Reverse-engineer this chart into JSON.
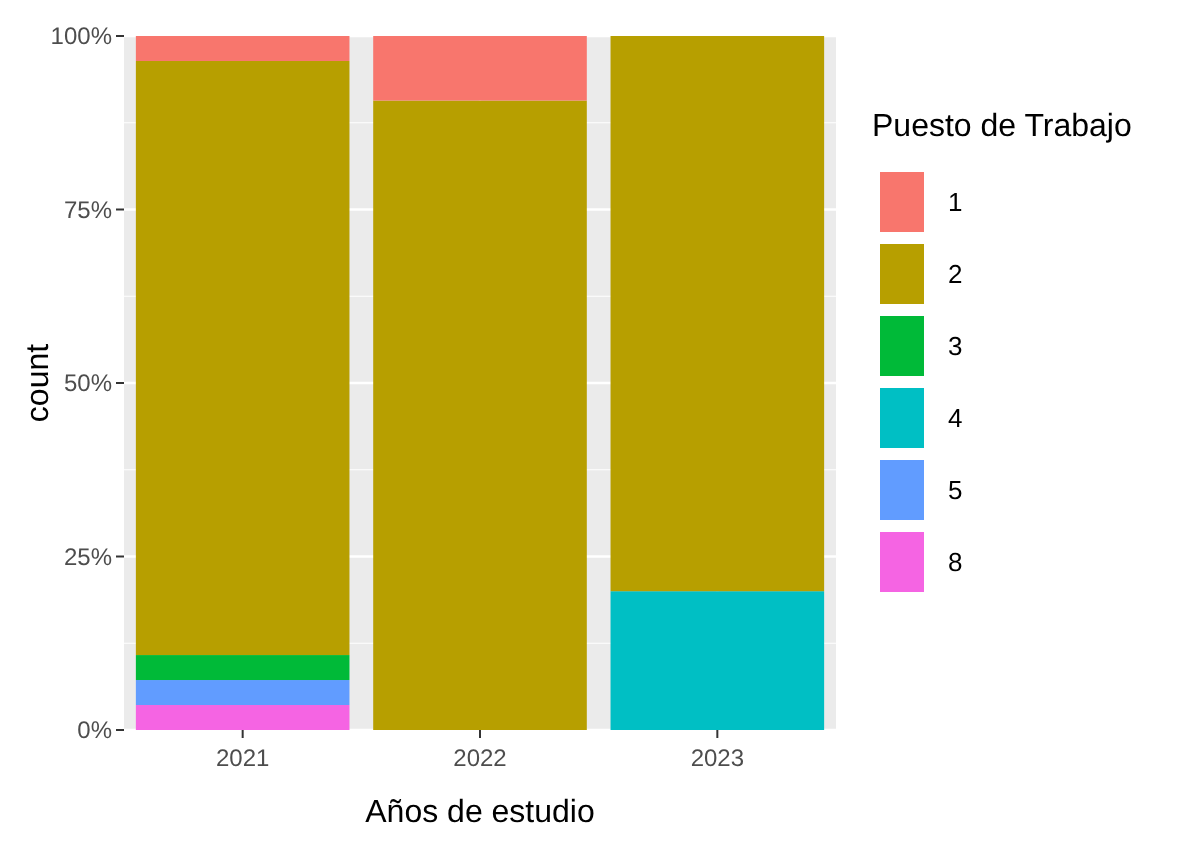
{
  "chart_data": {
    "type": "bar",
    "stacked": true,
    "xlabel": "Años de estudio",
    "ylabel": "count",
    "legend_title": "Puesto de Trabajo",
    "legend": "right",
    "grid": true,
    "categories": [
      "2021",
      "2022",
      "2023"
    ],
    "ylim": [
      0,
      100
    ],
    "yticks": [
      {
        "value": 0,
        "label": "0%"
      },
      {
        "value": 25,
        "label": "25%"
      },
      {
        "value": 50,
        "label": "50%"
      },
      {
        "value": 75,
        "label": "75%"
      },
      {
        "value": 100,
        "label": "100%"
      }
    ],
    "series": [
      {
        "name": "8",
        "color": "#f564e3",
        "values": [
          3.6,
          0,
          0
        ]
      },
      {
        "name": "5",
        "color": "#619cff",
        "values": [
          3.6,
          0,
          0
        ]
      },
      {
        "name": "4",
        "color": "#00bfc4",
        "values": [
          0,
          0,
          20
        ]
      },
      {
        "name": "3",
        "color": "#00ba38",
        "values": [
          3.6,
          0,
          0
        ]
      },
      {
        "name": "2",
        "color": "#b79f00",
        "values": [
          85.6,
          90.7,
          80
        ]
      },
      {
        "name": "1",
        "color": "#f8766d",
        "values": [
          3.6,
          9.3,
          0
        ]
      }
    ]
  }
}
